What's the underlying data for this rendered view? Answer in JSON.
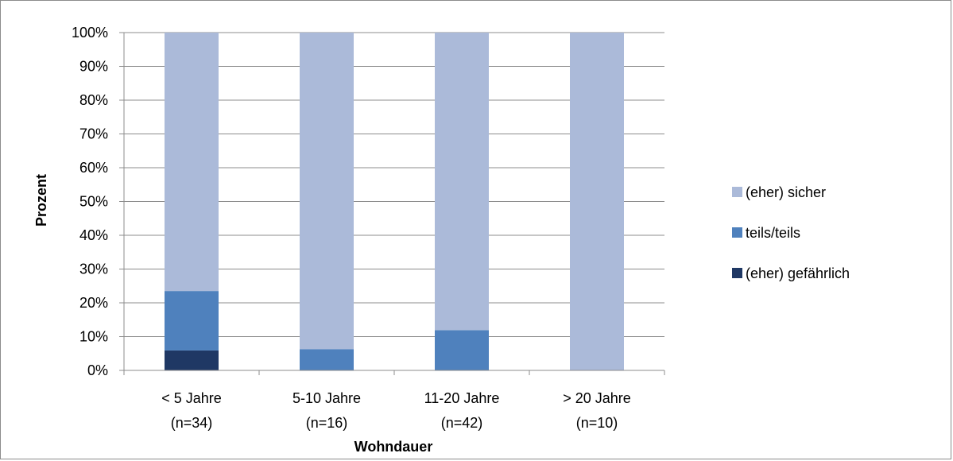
{
  "chart_data": {
    "type": "bar",
    "stacked": true,
    "percent_stacked": true,
    "categories": [
      [
        "< 5 Jahre",
        "(n=34)"
      ],
      [
        "5-10 Jahre",
        "(n=16)"
      ],
      [
        "11-20 Jahre",
        "(n=42)"
      ],
      [
        "> 20 Jahre",
        "(n=10)"
      ]
    ],
    "series": [
      {
        "name": "(eher) gefährlich",
        "color": "#1f3864",
        "values": [
          5.9,
          0,
          0,
          0
        ]
      },
      {
        "name": "teils/teils",
        "color": "#4f81bd",
        "values": [
          17.6,
          6.3,
          11.9,
          0
        ]
      },
      {
        "name": "(eher) sicher",
        "color": "#abbad9",
        "values": [
          76.5,
          93.7,
          88.1,
          100
        ]
      }
    ],
    "xlabel": "Wohndauer",
    "ylabel": "Prozent",
    "ylim": [
      0,
      100
    ],
    "yticks": [
      "0%",
      "10%",
      "20%",
      "30%",
      "40%",
      "50%",
      "60%",
      "70%",
      "80%",
      "90%",
      "100%"
    ],
    "grid": true,
    "legend_position": "right",
    "legend_order": [
      "(eher) sicher",
      "teils/teils",
      "(eher) gefährlich"
    ]
  }
}
